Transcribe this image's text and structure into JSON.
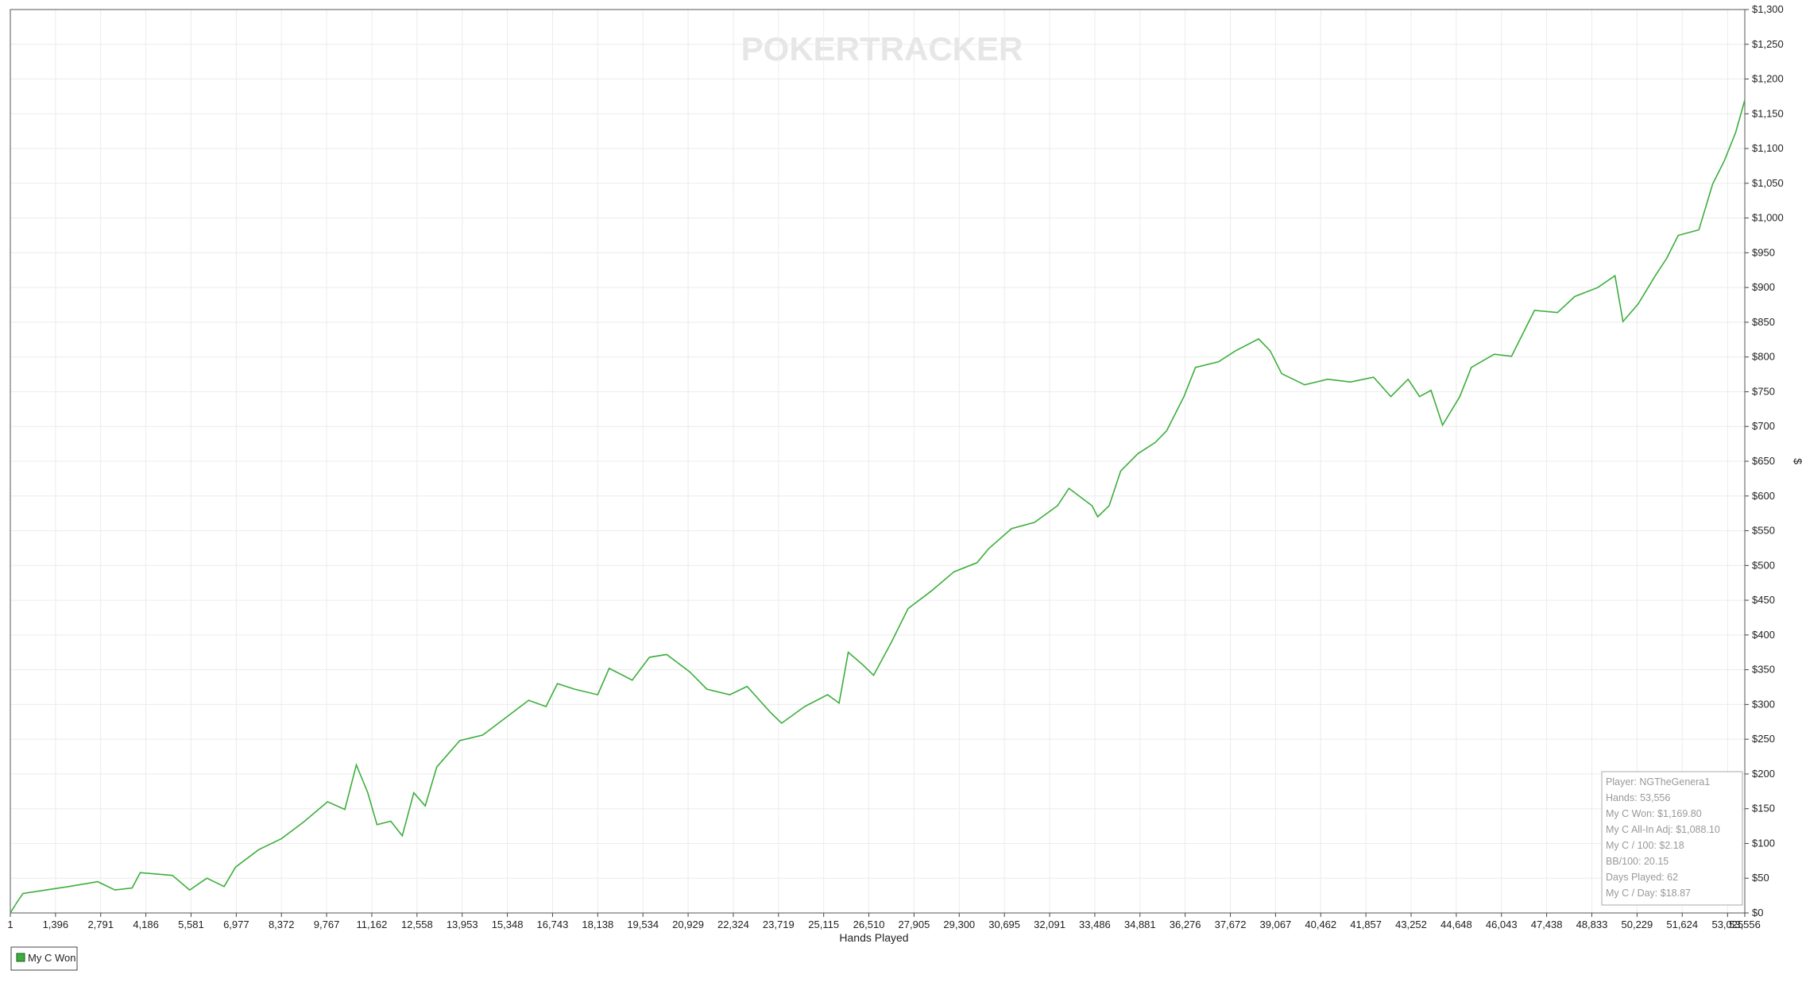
{
  "chart_data": {
    "type": "line",
    "watermark": "POKERTRACKER",
    "x_label": "Hands Played",
    "y_label": "$",
    "x": [
      1,
      214,
      391,
      1101,
      1811,
      2698,
      3231,
      3763,
      4011,
      5005,
      5538,
      6070,
      6602,
      6957,
      7667,
      8377,
      9087,
      9796,
      10329,
      10684,
      11039,
      11323,
      11748,
      12103,
      12458,
      12813,
      13168,
      13878,
      14588,
      15298,
      16007,
      16540,
      16895,
      17427,
      18137,
      18492,
      19202,
      19734,
      20266,
      20976,
      21509,
      22219,
      22751,
      23461,
      23816,
      24526,
      25235,
      25590,
      25874,
      26300,
      26655,
      27188,
      27720,
      28430,
      29140,
      29850,
      30205,
      30914,
      31624,
      32334,
      32689,
      33399,
      33576,
      33931,
      34286,
      34818,
      35351,
      35706,
      36238,
      36593,
      37303,
      37835,
      38545,
      38900,
      39255,
      39965,
      40674,
      41384,
      42094,
      42626,
      43159,
      43514,
      43869,
      44224,
      44756,
      45111,
      45821,
      46353,
      47063,
      47773,
      48305,
      49015,
      49548,
      49796,
      50258,
      50790,
      51145,
      51500,
      52139,
      52565,
      52920,
      53275,
      53556
    ],
    "series": [
      {
        "name": "My C Won",
        "color": "#3cae3c",
        "values": [
          0,
          16,
          28,
          33,
          38,
          45,
          33,
          36,
          58,
          54,
          33,
          50,
          38,
          66,
          91,
          107,
          132,
          160,
          149,
          213,
          173,
          127,
          132,
          111,
          173,
          154,
          210,
          248,
          256,
          281,
          306,
          297,
          330,
          322,
          314,
          352,
          335,
          368,
          372,
          347,
          322,
          314,
          326,
          289,
          273,
          297,
          314,
          302,
          375,
          358,
          342,
          388,
          438,
          463,
          491,
          504,
          524,
          553,
          562,
          586,
          611,
          586,
          570,
          586,
          636,
          661,
          677,
          694,
          743,
          785,
          793,
          809,
          826,
          809,
          776,
          760,
          768,
          764,
          771,
          743,
          768,
          743,
          752,
          702,
          743,
          785,
          804,
          801,
          867,
          864,
          887,
          900,
          917,
          851,
          876,
          917,
          942,
          975,
          983,
          1049,
          1082,
          1123,
          1169.8
        ]
      }
    ],
    "xlim": [
      1,
      53556
    ],
    "ylim": [
      0,
      1300
    ],
    "grid": true,
    "legend": "bottom-left",
    "xticks": [
      1,
      {
        "value": 1396,
        "label": "1,396"
      },
      {
        "value": 2791,
        "label": "2,791"
      },
      {
        "value": 4186,
        "label": "4,186"
      },
      {
        "value": 5581,
        "label": "5,581"
      },
      {
        "value": 6977,
        "label": "6,977"
      },
      {
        "value": 8372,
        "label": "8,372"
      },
      {
        "value": 9767,
        "label": "9,767"
      },
      {
        "value": 11162,
        "label": "11,162"
      },
      {
        "value": 12558,
        "label": "12,558"
      },
      {
        "value": 13953,
        "label": "13,953"
      },
      {
        "value": 15348,
        "label": "15,348"
      },
      {
        "value": 16743,
        "label": "16,743"
      },
      {
        "value": 18138,
        "label": "18,138"
      },
      {
        "value": 19534,
        "label": "19,534"
      },
      {
        "value": 20929,
        "label": "20,929"
      },
      {
        "value": 22324,
        "label": "22,324"
      },
      {
        "value": 23719,
        "label": "23,719"
      },
      {
        "value": 25115,
        "label": "25,115"
      },
      {
        "value": 26510,
        "label": "26,510"
      },
      {
        "value": 27905,
        "label": "27,905"
      },
      {
        "value": 29300,
        "label": "29,300"
      },
      {
        "value": 30695,
        "label": "30,695"
      },
      {
        "value": 32091,
        "label": "32,091"
      },
      {
        "value": 33486,
        "label": "33,486"
      },
      {
        "value": 34881,
        "label": "34,881"
      },
      {
        "value": 36276,
        "label": "36,276"
      },
      {
        "value": 37672,
        "label": "37,672"
      },
      {
        "value": 39067,
        "label": "39,067"
      },
      {
        "value": 40462,
        "label": "40,462"
      },
      {
        "value": 41857,
        "label": "41,857"
      },
      {
        "value": 43252,
        "label": "43,252"
      },
      {
        "value": 44648,
        "label": "44,648"
      },
      {
        "value": 46043,
        "label": "46,043"
      },
      {
        "value": 47438,
        "label": "47,438"
      },
      {
        "value": 48833,
        "label": "48,833"
      },
      {
        "value": 50229,
        "label": "50,229"
      },
      {
        "value": 51624,
        "label": "51,624"
      },
      {
        "value": 53025,
        "label": "53,025"
      },
      {
        "value": 53556,
        "label": "53,556"
      }
    ],
    "yticks": [
      {
        "value": 0,
        "label": "$0"
      },
      {
        "value": 50,
        "label": "$50"
      },
      {
        "value": 100,
        "label": "$100"
      },
      {
        "value": 150,
        "label": "$150"
      },
      {
        "value": 200,
        "label": "$200"
      },
      {
        "value": 250,
        "label": "$250"
      },
      {
        "value": 300,
        "label": "$300"
      },
      {
        "value": 350,
        "label": "$350"
      },
      {
        "value": 400,
        "label": "$400"
      },
      {
        "value": 450,
        "label": "$450"
      },
      {
        "value": 500,
        "label": "$500"
      },
      {
        "value": 550,
        "label": "$550"
      },
      {
        "value": 600,
        "label": "$600"
      },
      {
        "value": 650,
        "label": "$650"
      },
      {
        "value": 700,
        "label": "$700"
      },
      {
        "value": 750,
        "label": "$750"
      },
      {
        "value": 800,
        "label": "$800"
      },
      {
        "value": 850,
        "label": "$850"
      },
      {
        "value": 900,
        "label": "$900"
      },
      {
        "value": 950,
        "label": "$950"
      },
      {
        "value": 1000,
        "label": "$1,000"
      },
      {
        "value": 1050,
        "label": "$1,050"
      },
      {
        "value": 1100,
        "label": "$1,100"
      },
      {
        "value": 1150,
        "label": "$1,150"
      },
      {
        "value": 1200,
        "label": "$1,200"
      },
      {
        "value": 1250,
        "label": "$1,250"
      },
      {
        "value": 1300,
        "label": "$1,300"
      }
    ],
    "annotations": [
      "Player: NGTheGenera1",
      "Hands: 53,556",
      "My C Won: $1,169.80",
      "My C All-In Adj: $1,088.10",
      "My C / 100: $2.18",
      "BB/100: 20.15",
      "Days Played: 62",
      "My C / Day: $18.87"
    ]
  }
}
